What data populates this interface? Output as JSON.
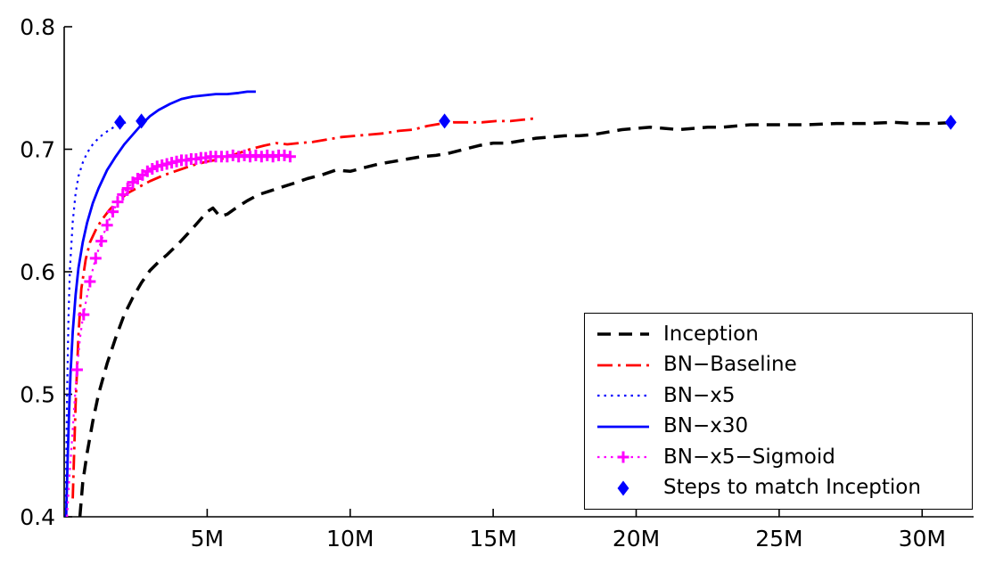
{
  "figure": {
    "background": "#ffffff",
    "axis_color": "#000000"
  },
  "chart_data": {
    "type": "line",
    "title": "",
    "xlabel": "",
    "ylabel": "",
    "xlim": [
      0,
      31.8
    ],
    "ylim": [
      0.4,
      0.8
    ],
    "grid": false,
    "x_ticks": [
      {
        "value": 5,
        "label": "5M"
      },
      {
        "value": 10,
        "label": "10M"
      },
      {
        "value": 15,
        "label": "15M"
      },
      {
        "value": 20,
        "label": "20M"
      },
      {
        "value": 25,
        "label": "25M"
      },
      {
        "value": 30,
        "label": "30M"
      }
    ],
    "y_ticks": [
      {
        "value": 0.4,
        "label": "0.4"
      },
      {
        "value": 0.5,
        "label": "0.5"
      },
      {
        "value": 0.6,
        "label": "0.6"
      },
      {
        "value": 0.7,
        "label": "0.7"
      },
      {
        "value": 0.8,
        "label": "0.8"
      }
    ],
    "legend": {
      "position": "lower right"
    },
    "series": [
      {
        "name": "Inception",
        "color": "#000000",
        "line_style": "dashed",
        "line_width": 3.5,
        "marker": "none",
        "points": [
          [
            0.55,
            0.4
          ],
          [
            0.65,
            0.428
          ],
          [
            0.8,
            0.452
          ],
          [
            1.0,
            0.478
          ],
          [
            1.2,
            0.5
          ],
          [
            1.5,
            0.525
          ],
          [
            1.8,
            0.546
          ],
          [
            2.1,
            0.565
          ],
          [
            2.4,
            0.579
          ],
          [
            2.7,
            0.591
          ],
          [
            3.0,
            0.601
          ],
          [
            3.3,
            0.608
          ],
          [
            3.6,
            0.614
          ],
          [
            4.0,
            0.623
          ],
          [
            4.4,
            0.633
          ],
          [
            4.7,
            0.641
          ],
          [
            5.0,
            0.649
          ],
          [
            5.2,
            0.652
          ],
          [
            5.45,
            0.645
          ],
          [
            5.7,
            0.647
          ],
          [
            6.0,
            0.652
          ],
          [
            6.4,
            0.658
          ],
          [
            6.8,
            0.663
          ],
          [
            7.2,
            0.666
          ],
          [
            7.6,
            0.669
          ],
          [
            8.0,
            0.672
          ],
          [
            8.5,
            0.676
          ],
          [
            9.0,
            0.679
          ],
          [
            9.5,
            0.683
          ],
          [
            10.0,
            0.682
          ],
          [
            10.5,
            0.685
          ],
          [
            11.0,
            0.688
          ],
          [
            11.5,
            0.69
          ],
          [
            12.0,
            0.692
          ],
          [
            12.5,
            0.694
          ],
          [
            13.0,
            0.695
          ],
          [
            13.5,
            0.697
          ],
          [
            14.0,
            0.7
          ],
          [
            14.5,
            0.703
          ],
          [
            15.0,
            0.705
          ],
          [
            15.5,
            0.705
          ],
          [
            16.0,
            0.707
          ],
          [
            16.5,
            0.709
          ],
          [
            17.0,
            0.71
          ],
          [
            17.5,
            0.711
          ],
          [
            18.0,
            0.711
          ],
          [
            18.5,
            0.712
          ],
          [
            19.0,
            0.714
          ],
          [
            19.5,
            0.716
          ],
          [
            20.0,
            0.717
          ],
          [
            20.5,
            0.718
          ],
          [
            21.0,
            0.717
          ],
          [
            21.5,
            0.716
          ],
          [
            22.0,
            0.717
          ],
          [
            22.5,
            0.718
          ],
          [
            23.0,
            0.718
          ],
          [
            23.5,
            0.719
          ],
          [
            24.0,
            0.72
          ],
          [
            25.0,
            0.72
          ],
          [
            26.0,
            0.72
          ],
          [
            27.0,
            0.721
          ],
          [
            28.0,
            0.721
          ],
          [
            29.0,
            0.722
          ],
          [
            29.7,
            0.721
          ],
          [
            30.4,
            0.721
          ],
          [
            31.2,
            0.722
          ]
        ]
      },
      {
        "name": "BN−Baseline",
        "color": "#ff0000",
        "line_style": "dashdot",
        "line_width": 2.8,
        "marker": "none",
        "points": [
          [
            0.3,
            0.415
          ],
          [
            0.4,
            0.492
          ],
          [
            0.5,
            0.548
          ],
          [
            0.6,
            0.586
          ],
          [
            0.75,
            0.61
          ],
          [
            0.9,
            0.624
          ],
          [
            1.1,
            0.634
          ],
          [
            1.3,
            0.642
          ],
          [
            1.6,
            0.651
          ],
          [
            1.9,
            0.658
          ],
          [
            2.2,
            0.664
          ],
          [
            2.6,
            0.669
          ],
          [
            3.0,
            0.674
          ],
          [
            3.5,
            0.679
          ],
          [
            4.0,
            0.683
          ],
          [
            4.5,
            0.687
          ],
          [
            5.0,
            0.69
          ],
          [
            5.5,
            0.692
          ],
          [
            6.0,
            0.696
          ],
          [
            6.5,
            0.7
          ],
          [
            7.0,
            0.703
          ],
          [
            7.4,
            0.705
          ],
          [
            7.8,
            0.704
          ],
          [
            8.2,
            0.705
          ],
          [
            8.7,
            0.706
          ],
          [
            9.2,
            0.708
          ],
          [
            9.7,
            0.71
          ],
          [
            10.2,
            0.711
          ],
          [
            10.7,
            0.712
          ],
          [
            11.2,
            0.713
          ],
          [
            11.7,
            0.715
          ],
          [
            12.2,
            0.716
          ],
          [
            12.7,
            0.719
          ],
          [
            13.2,
            0.721
          ],
          [
            13.6,
            0.722
          ],
          [
            14.1,
            0.722
          ],
          [
            14.6,
            0.722
          ],
          [
            15.1,
            0.723
          ],
          [
            15.6,
            0.723
          ],
          [
            16.0,
            0.724
          ],
          [
            16.4,
            0.725
          ]
        ]
      },
      {
        "name": "BN−x5",
        "color": "#0000ff",
        "line_style": "dotted",
        "line_width": 2.2,
        "marker": "none",
        "points": [
          [
            0.05,
            0.4
          ],
          [
            0.1,
            0.498
          ],
          [
            0.15,
            0.562
          ],
          [
            0.2,
            0.602
          ],
          [
            0.3,
            0.641
          ],
          [
            0.4,
            0.664
          ],
          [
            0.5,
            0.678
          ],
          [
            0.65,
            0.689
          ],
          [
            0.8,
            0.697
          ],
          [
            1.0,
            0.704
          ],
          [
            1.2,
            0.709
          ],
          [
            1.4,
            0.713
          ],
          [
            1.6,
            0.716
          ],
          [
            1.8,
            0.719
          ],
          [
            2.0,
            0.721
          ],
          [
            2.2,
            0.722
          ]
        ]
      },
      {
        "name": "BN−x30",
        "color": "#0000ff",
        "line_style": "solid",
        "line_width": 2.8,
        "marker": "none",
        "points": [
          [
            0.07,
            0.4
          ],
          [
            0.12,
            0.445
          ],
          [
            0.17,
            0.486
          ],
          [
            0.22,
            0.517
          ],
          [
            0.3,
            0.551
          ],
          [
            0.4,
            0.581
          ],
          [
            0.5,
            0.603
          ],
          [
            0.65,
            0.624
          ],
          [
            0.8,
            0.64
          ],
          [
            1.0,
            0.656
          ],
          [
            1.2,
            0.668
          ],
          [
            1.5,
            0.683
          ],
          [
            1.8,
            0.694
          ],
          [
            2.1,
            0.704
          ],
          [
            2.4,
            0.712
          ],
          [
            2.7,
            0.72
          ],
          [
            3.0,
            0.727
          ],
          [
            3.3,
            0.732
          ],
          [
            3.7,
            0.737
          ],
          [
            4.1,
            0.741
          ],
          [
            4.5,
            0.743
          ],
          [
            4.9,
            0.744
          ],
          [
            5.3,
            0.745
          ],
          [
            5.7,
            0.745
          ],
          [
            6.1,
            0.746
          ],
          [
            6.4,
            0.747
          ],
          [
            6.7,
            0.747
          ]
        ]
      },
      {
        "name": "BN−x5−Sigmoid",
        "color": "#ff00ff",
        "line_style": "dotted",
        "line_width": 2.2,
        "marker": "plus",
        "marker_size": 13,
        "points": [
          [
            0.1,
            0.4
          ],
          [
            0.18,
            0.432
          ],
          [
            0.27,
            0.462
          ],
          [
            0.36,
            0.492
          ],
          [
            0.45,
            0.52
          ],
          [
            0.55,
            0.545
          ],
          [
            0.65,
            0.562
          ],
          [
            0.78,
            0.578
          ],
          [
            0.9,
            0.592
          ],
          [
            1.0,
            0.602
          ],
          [
            1.1,
            0.611
          ],
          [
            1.25,
            0.622
          ],
          [
            1.4,
            0.632
          ],
          [
            1.55,
            0.641
          ],
          [
            1.7,
            0.649
          ],
          [
            1.85,
            0.656
          ],
          [
            2.0,
            0.662
          ],
          [
            2.2,
            0.668
          ],
          [
            2.4,
            0.673
          ],
          [
            2.6,
            0.677
          ],
          [
            2.8,
            0.68
          ],
          [
            3.0,
            0.683
          ],
          [
            3.2,
            0.685
          ],
          [
            3.4,
            0.687
          ],
          [
            3.6,
            0.688
          ],
          [
            3.8,
            0.689
          ],
          [
            4.0,
            0.69
          ],
          [
            4.2,
            0.691
          ],
          [
            4.4,
            0.692
          ],
          [
            4.6,
            0.692
          ],
          [
            4.8,
            0.693
          ],
          [
            5.0,
            0.693
          ],
          [
            5.2,
            0.694
          ],
          [
            5.4,
            0.694
          ],
          [
            5.6,
            0.694
          ],
          [
            5.8,
            0.695
          ],
          [
            6.0,
            0.694
          ],
          [
            6.2,
            0.695
          ],
          [
            6.4,
            0.694
          ],
          [
            6.6,
            0.695
          ],
          [
            6.8,
            0.694
          ],
          [
            7.0,
            0.695
          ],
          [
            7.2,
            0.694
          ],
          [
            7.4,
            0.695
          ],
          [
            7.6,
            0.695
          ],
          [
            7.8,
            0.694
          ],
          [
            7.95,
            0.695
          ]
        ],
        "marker_points": [
          [
            0.45,
            0.52
          ],
          [
            0.68,
            0.565
          ],
          [
            0.9,
            0.592
          ],
          [
            1.1,
            0.611
          ],
          [
            1.3,
            0.625
          ],
          [
            1.5,
            0.638
          ],
          [
            1.7,
            0.649
          ],
          [
            1.87,
            0.657
          ],
          [
            2.05,
            0.663
          ],
          [
            2.22,
            0.668
          ],
          [
            2.4,
            0.673
          ],
          [
            2.57,
            0.676
          ],
          [
            2.74,
            0.679
          ],
          [
            2.91,
            0.682
          ],
          [
            3.08,
            0.684
          ],
          [
            3.25,
            0.686
          ],
          [
            3.42,
            0.687
          ],
          [
            3.59,
            0.688
          ],
          [
            3.76,
            0.689
          ],
          [
            3.93,
            0.69
          ],
          [
            4.1,
            0.691
          ],
          [
            4.27,
            0.691
          ],
          [
            4.44,
            0.692
          ],
          [
            4.61,
            0.692
          ],
          [
            4.78,
            0.693
          ],
          [
            4.95,
            0.693
          ],
          [
            5.12,
            0.694
          ],
          [
            5.3,
            0.694
          ],
          [
            5.5,
            0.694
          ],
          [
            5.7,
            0.694
          ],
          [
            5.9,
            0.695
          ],
          [
            6.1,
            0.694
          ],
          [
            6.3,
            0.695
          ],
          [
            6.5,
            0.694
          ],
          [
            6.7,
            0.695
          ],
          [
            6.9,
            0.694
          ],
          [
            7.1,
            0.695
          ],
          [
            7.3,
            0.694
          ],
          [
            7.5,
            0.695
          ],
          [
            7.7,
            0.695
          ],
          [
            7.9,
            0.694
          ]
        ]
      },
      {
        "name": "Steps to match Inception",
        "color": "#0000ff",
        "line_style": "none",
        "line_width": 0,
        "marker": "diamond",
        "marker_size": 17,
        "points": [
          [
            1.95,
            0.722
          ],
          [
            2.7,
            0.723
          ],
          [
            13.3,
            0.723
          ],
          [
            31.0,
            0.722
          ]
        ]
      }
    ]
  }
}
